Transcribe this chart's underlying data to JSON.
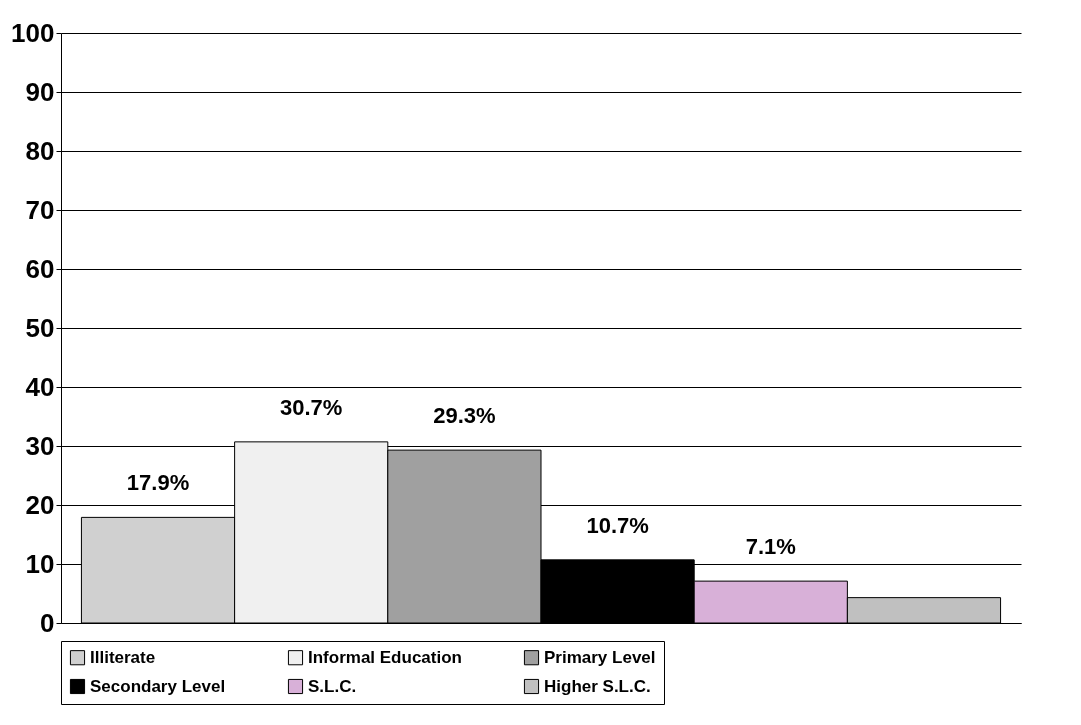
{
  "chart_data": {
    "type": "bar",
    "categories": [
      null
    ],
    "series": [
      {
        "name": "Illiterate",
        "color": "#d0d0d0",
        "values": [
          17.9
        ],
        "value_labels": [
          "17.9%"
        ]
      },
      {
        "name": "Informal Education",
        "color": "#f0f0f0",
        "values": [
          30.7
        ],
        "value_labels": [
          "30.7%"
        ]
      },
      {
        "name": "Primary Level",
        "color": "#a0a0a0",
        "values": [
          29.3
        ],
        "value_labels": [
          "29.3%"
        ]
      },
      {
        "name": "Secondary Level",
        "color": "#000000",
        "values": [
          10.7
        ],
        "value_labels": [
          "10.7%"
        ]
      },
      {
        "name": "S.L.C.",
        "color": "#d8b0d8",
        "values": [
          7.1
        ],
        "value_labels": [
          "7.1%"
        ]
      },
      {
        "name": "Higher S.L.C.",
        "color": "#c0c0c0",
        "values": [
          4.3
        ]
      }
    ],
    "ylim": [
      0,
      100
    ],
    "yticks": [
      0,
      10,
      20,
      30,
      40,
      50,
      60,
      70,
      80,
      90,
      100
    ],
    "grid": "y",
    "legend": "bottom",
    "tick_labels": "y"
  }
}
